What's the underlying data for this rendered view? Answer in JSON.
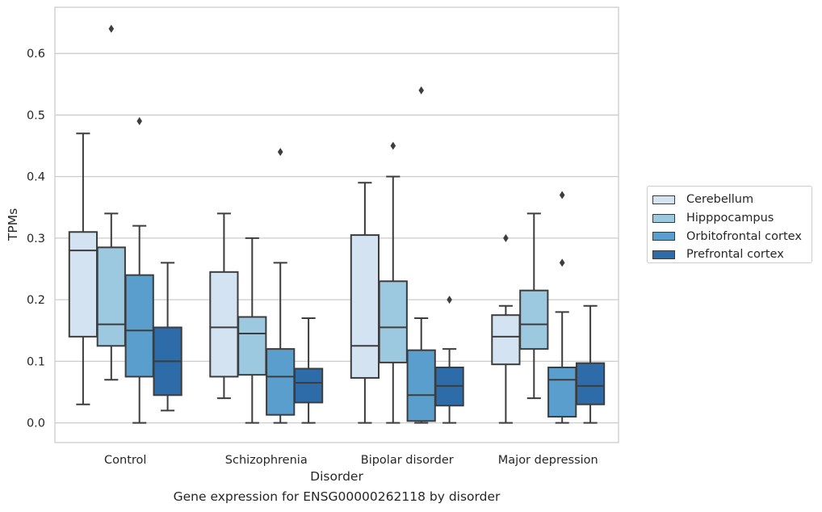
{
  "chart_data": {
    "type": "box",
    "xlabel": "Disorder",
    "ylabel": "TPMs",
    "caption": "Gene expression for ENSG00000262118 by disorder",
    "categories": [
      "Control",
      "Schizophrenia",
      "Bipolar disorder",
      "Major depression"
    ],
    "ylim": [
      -0.032,
      0.675
    ],
    "yticks": [
      "0.0",
      "0.1",
      "0.2",
      "0.3",
      "0.4",
      "0.5",
      "0.6"
    ],
    "grid": "horizontal",
    "legend_position": "right",
    "series": [
      {
        "name": "Cerebellum",
        "color": "#d3e3f1",
        "boxes": [
          {
            "whisker_low": 0.03,
            "q1": 0.14,
            "median": 0.28,
            "q3": 0.31,
            "whisker_high": 0.47,
            "outliers": []
          },
          {
            "whisker_low": 0.04,
            "q1": 0.075,
            "median": 0.155,
            "q3": 0.245,
            "whisker_high": 0.34,
            "outliers": []
          },
          {
            "whisker_low": 0.0,
            "q1": 0.073,
            "median": 0.125,
            "q3": 0.305,
            "whisker_high": 0.39,
            "outliers": []
          },
          {
            "whisker_low": 0.0,
            "q1": 0.095,
            "median": 0.14,
            "q3": 0.175,
            "whisker_high": 0.19,
            "outliers": [
              0.3
            ]
          }
        ]
      },
      {
        "name": "Hipppocampus",
        "color": "#9cc8e0",
        "boxes": [
          {
            "whisker_low": 0.07,
            "q1": 0.125,
            "median": 0.16,
            "q3": 0.285,
            "whisker_high": 0.34,
            "outliers": [
              0.64
            ]
          },
          {
            "whisker_low": 0.0,
            "q1": 0.078,
            "median": 0.145,
            "q3": 0.172,
            "whisker_high": 0.3,
            "outliers": []
          },
          {
            "whisker_low": 0.0,
            "q1": 0.098,
            "median": 0.155,
            "q3": 0.23,
            "whisker_high": 0.4,
            "outliers": [
              0.45
            ]
          },
          {
            "whisker_low": 0.04,
            "q1": 0.12,
            "median": 0.16,
            "q3": 0.215,
            "whisker_high": 0.34,
            "outliers": []
          }
        ]
      },
      {
        "name": "Orbitofrontal cortex",
        "color": "#5a9ecd",
        "boxes": [
          {
            "whisker_low": 0.0,
            "q1": 0.075,
            "median": 0.15,
            "q3": 0.24,
            "whisker_high": 0.32,
            "outliers": [
              0.49
            ]
          },
          {
            "whisker_low": 0.0,
            "q1": 0.013,
            "median": 0.075,
            "q3": 0.12,
            "whisker_high": 0.26,
            "outliers": [
              0.44
            ]
          },
          {
            "whisker_low": 0.0,
            "q1": 0.003,
            "median": 0.045,
            "q3": 0.118,
            "whisker_high": 0.17,
            "outliers": [
              0.54
            ]
          },
          {
            "whisker_low": 0.0,
            "q1": 0.01,
            "median": 0.07,
            "q3": 0.09,
            "whisker_high": 0.18,
            "outliers": [
              0.26,
              0.37
            ]
          }
        ]
      },
      {
        "name": "Prefrontal cortex",
        "color": "#2d6ca8",
        "boxes": [
          {
            "whisker_low": 0.02,
            "q1": 0.045,
            "median": 0.1,
            "q3": 0.155,
            "whisker_high": 0.26,
            "outliers": []
          },
          {
            "whisker_low": 0.0,
            "q1": 0.033,
            "median": 0.065,
            "q3": 0.088,
            "whisker_high": 0.17,
            "outliers": []
          },
          {
            "whisker_low": 0.0,
            "q1": 0.028,
            "median": 0.06,
            "q3": 0.09,
            "whisker_high": 0.12,
            "outliers": [
              0.2
            ]
          },
          {
            "whisker_low": 0.0,
            "q1": 0.03,
            "median": 0.06,
            "q3": 0.097,
            "whisker_high": 0.19,
            "outliers": []
          }
        ]
      }
    ]
  }
}
